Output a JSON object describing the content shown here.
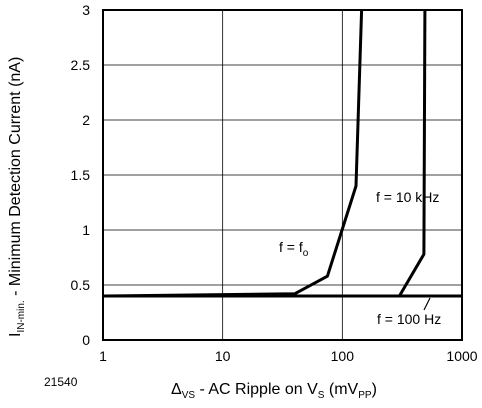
{
  "figure_id": "21540",
  "chart_data": {
    "type": "line",
    "x_scale": "log",
    "xlim": [
      1,
      1000
    ],
    "ylim": [
      0,
      3
    ],
    "x_ticks": [
      1,
      10,
      100,
      1000
    ],
    "x_tick_labels": [
      "1",
      "10",
      "100",
      "1000"
    ],
    "y_ticks": [
      0,
      0.5,
      1,
      1.5,
      2,
      2.5,
      3
    ],
    "y_tick_labels": [
      "0",
      "0.5",
      "1",
      "1.5",
      "2",
      "2.5",
      "3"
    ],
    "grid": true,
    "xlabel": {
      "delta": "Δ",
      "delta_sub": "VS",
      "text": " - AC Ripple on V",
      "v_sub": "S",
      "paren_open": " (mV",
      "pp_sub": "PP",
      "paren_close": ")"
    },
    "ylabel": {
      "i": "I",
      "i_sub": "IN-min.",
      "text": " - Minimum Detection Current (nA)"
    },
    "series": [
      {
        "name": "f = f",
        "name_sub": "o",
        "x": [
          1,
          40,
          75,
          130,
          145
        ],
        "y": [
          0.4,
          0.42,
          0.58,
          1.4,
          3.0
        ]
      },
      {
        "name": "f = 10 kHz",
        "x": [
          1,
          300,
          480,
          490
        ],
        "y": [
          0.4,
          0.4,
          0.78,
          3.0
        ]
      },
      {
        "name": "f = 100 Hz",
        "x": [
          1,
          1000
        ],
        "y": [
          0.4,
          0.4
        ]
      }
    ]
  }
}
